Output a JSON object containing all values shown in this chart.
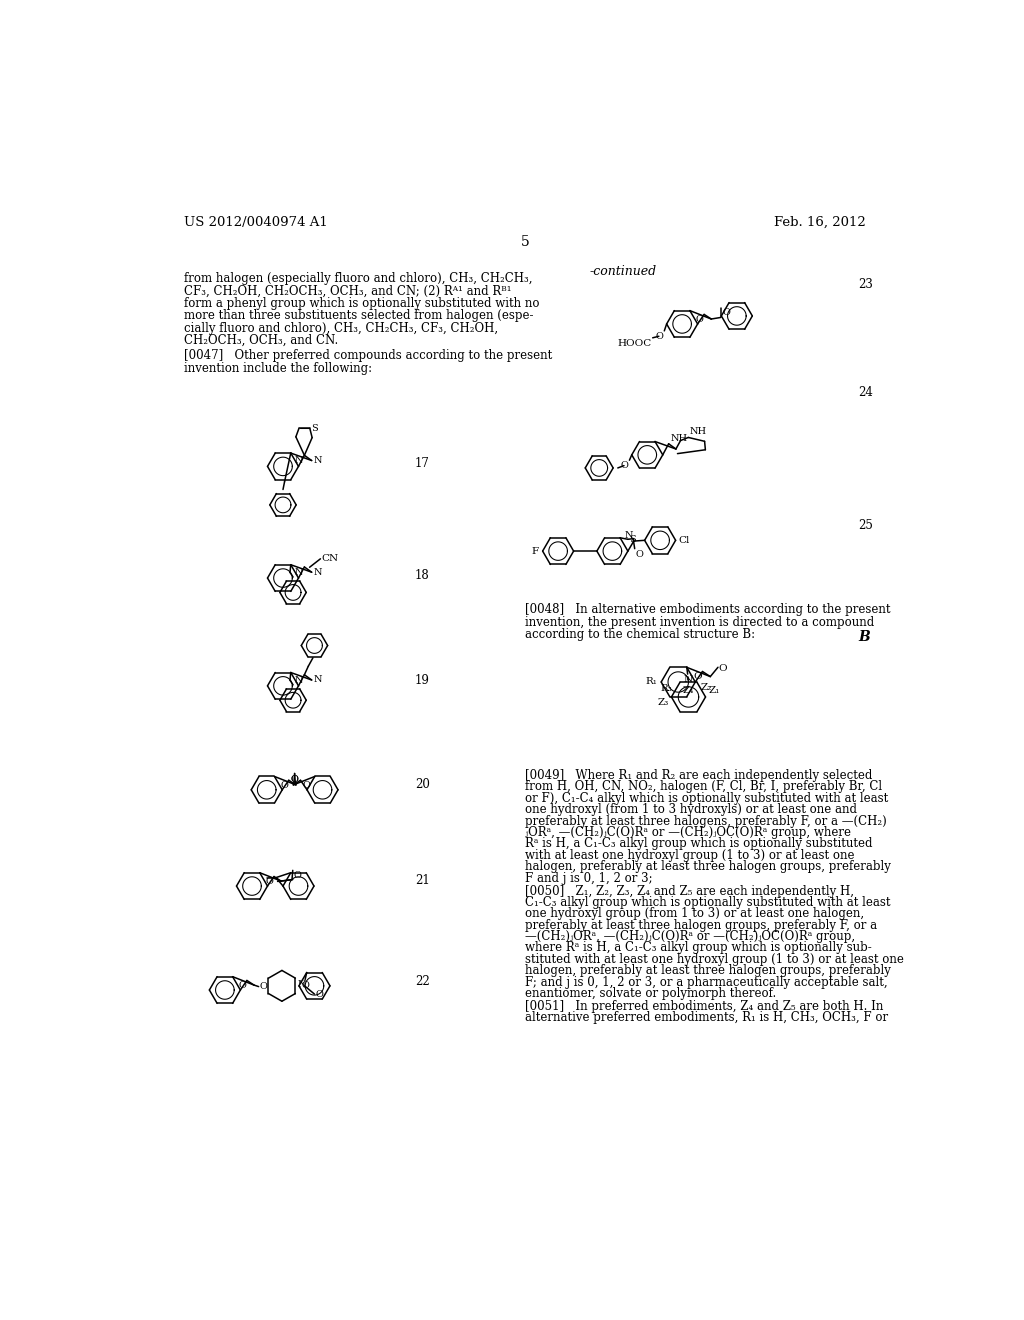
{
  "background_color": "#ffffff",
  "header_left": "US 2012/0040974 A1",
  "header_right": "Feb. 16, 2012",
  "page_number": "5",
  "continued_label": "-continued",
  "left_text_block": [
    "from halogen (especially fluoro and chloro), CH₃, CH₂CH₃,",
    "CF₃, CH₂OH, CH₂OCH₃, OCH₃, and CN; (2) Rᴬ¹ and Rᴮ¹",
    "form a phenyl group which is optionally substituted with no",
    "more than three substituents selected from halogen (espe-",
    "cially fluoro and chloro), CH₃, CH₂CH₃, CF₃, CH₂OH,",
    "CH₂OCH₃, OCH₃, and CN."
  ],
  "p47_lines": [
    "[0047]   Other preferred compounds according to the present",
    "invention include the following:"
  ],
  "p48_lines": [
    "[0048]   In alternative embodiments according to the present",
    "invention, the present invention is directed to a compound",
    "according to the chemical structure B:"
  ],
  "p49_lines": [
    "[0049]   Where R₁ and R₂ are each independently selected",
    "from H, OH, CN, NO₂, halogen (F, Cl, Br, I, preferably Br, Cl",
    "or F), C₁-C₄ alkyl which is optionally substituted with at least",
    "one hydroxyl (from 1 to 3 hydroxyls) or at least one and",
    "preferably at least three halogens, preferably F, or a —(CH₂)",
    "ⱼORᵃ, —(CH₂)ⱼC(O)Rᵃ or —(CH₂)ⱼOC(O)Rᵃ group, where",
    "Rᵃ is H, a C₁-C₃ alkyl group which is optionally substituted",
    "with at least one hydroxyl group (1 to 3) or at least one",
    "halogen, preferably at least three halogen groups, preferably",
    "F and j is 0, 1, 2 or 3;"
  ],
  "p50_lines": [
    "[0050]   Z₁, Z₂, Z₃, Z₄ and Z₅ are each independently H,",
    "C₁-C₃ alkyl group which is optionally substituted with at least",
    "one hydroxyl group (from 1 to 3) or at least one halogen,",
    "preferably at least three halogen groups, preferably F, or a",
    "—(CH₂)ⱼORᵃ, —(CH₂)ⱼC(O)Rᵃ or —(CH₂)ⱼOC(O)Rᵃ group,",
    "where Rᵃ is H, a C₁-C₃ alkyl group which is optionally sub-",
    "stituted with at least one hydroxyl group (1 to 3) or at least one",
    "halogen, preferably at least three halogen groups, preferably",
    "F; and j is 0, 1, 2 or 3, or a pharmaceutically acceptable salt,",
    "enantiomer, solvate or polymorph thereof."
  ],
  "p51_lines": [
    "[0051]   In preferred embodiments, Z₄ and Z₅ are both H. In",
    "alternative preferred embodiments, R₁ is H, CH₃, OCH₃, F or"
  ]
}
